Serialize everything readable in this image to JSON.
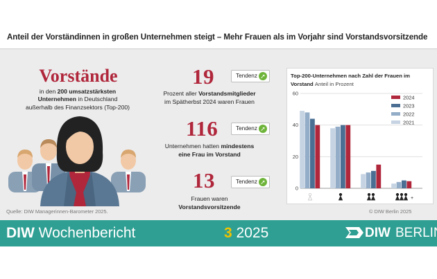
{
  "headline": "Anteil der Vorständinnen in großen Unternehmen steigt – Mehr Frauen als im Vorjahr sind Vorstandsvorsitzende",
  "left": {
    "title": "Vorstände",
    "line1_pre": "in den ",
    "line1_bold": "200 umsatzstärksten",
    "line2_bold": "Unternehmen",
    "line2_post": " in Deutschland",
    "line3": "außerhalb des Finanzsektors (Top-200)"
  },
  "stats": [
    {
      "value": "19",
      "tendenz": "Tendenz",
      "line1_pre": "Prozent aller ",
      "line1_bold": "Vorstandsmitglieder",
      "line2": "im Spätherbst 2024 waren Frauen"
    },
    {
      "value": "116",
      "tendenz": "Tendenz",
      "line1_pre": "Unternehmen hatten ",
      "line1_bold": "mindestens",
      "line2_bold": "eine Frau im Vorstand"
    },
    {
      "value": "13",
      "tendenz": "Tendenz",
      "line1": "Frauen waren",
      "line2_bold": "Vorstandsvorsitzende"
    }
  ],
  "chart_data": {
    "type": "bar",
    "title": "Top-200-Unternehmen nach Zahl der Frauen im Vorstand",
    "subtitle": "Anteil in Prozent",
    "categories": [
      "0",
      "1",
      "2",
      "3+"
    ],
    "category_icons": [
      "woman-icon-0",
      "woman-icon-1",
      "woman-icon-2",
      "woman-icon-3plus"
    ],
    "ylim": [
      0,
      60
    ],
    "yticks": [
      0,
      20,
      40,
      60
    ],
    "grid": true,
    "legend_position": "top-right",
    "series": [
      {
        "name": "2021",
        "color": "#c5d3e2",
        "values": [
          49,
          38,
          9,
          3
        ]
      },
      {
        "name": "2022",
        "color": "#93acc8",
        "values": [
          48,
          39,
          10,
          4
        ]
      },
      {
        "name": "2023",
        "color": "#4b6f93",
        "values": [
          44,
          40,
          11,
          5
        ]
      },
      {
        "name": "2024",
        "color": "#b0263b",
        "values": [
          40,
          40,
          15,
          4.5
        ]
      }
    ],
    "legend_order": [
      "2024",
      "2023",
      "2022",
      "2021"
    ],
    "plus_label": "+"
  },
  "source": "Quelle: DIW Managerinnen-Barometer 2025.",
  "copyright": "© DIW Berlin 2025",
  "footer": {
    "brand": "DIW",
    "publication": "Wochenbericht",
    "issue": "3",
    "year": "2025",
    "logo_left": "DIW",
    "logo_right": "BERLIN"
  },
  "colors": {
    "accent_red": "#b0263b",
    "band_teal": "#2f9f93",
    "issue_yellow": "#f0c300",
    "arrow_green": "#6fb43a"
  }
}
